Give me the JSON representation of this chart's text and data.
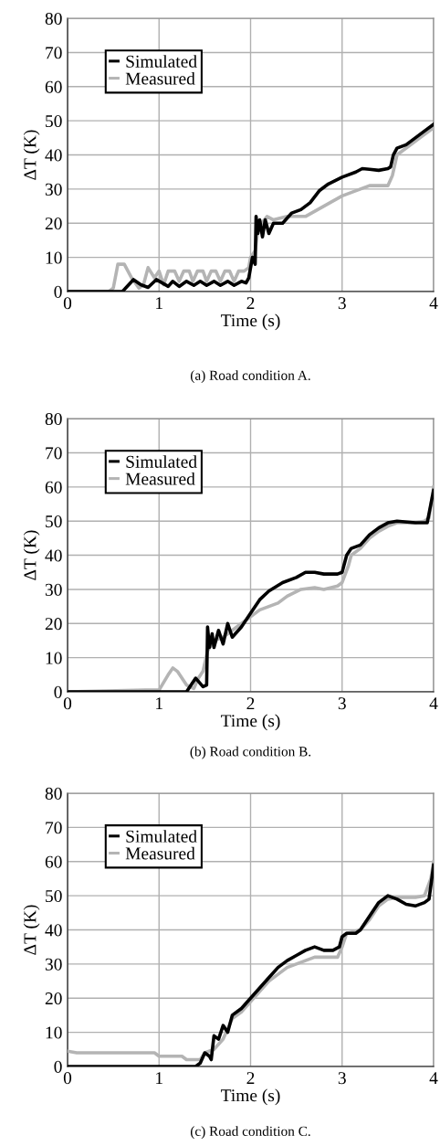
{
  "chart_data": [
    {
      "type": "line",
      "xlabel": "Time (s)",
      "ylabel": "ΔT (K)",
      "xlim": [
        0,
        4
      ],
      "ylim": [
        0,
        80
      ],
      "xticks": [
        0,
        1,
        2,
        3,
        4
      ],
      "yticks": [
        0,
        10,
        20,
        30,
        40,
        50,
        60,
        70,
        80
      ],
      "grid": true,
      "legend": "top left",
      "marker": "none",
      "line_style": "solid",
      "annotations": [
        "(a) Road condition A."
      ],
      "series": [
        {
          "name": "Simulated",
          "color": "#000000",
          "x": [
            0,
            0.6,
            0.72,
            0.8,
            0.88,
            0.97,
            1.1,
            1.15,
            1.22,
            1.3,
            1.38,
            1.45,
            1.52,
            1.6,
            1.67,
            1.75,
            1.82,
            1.9,
            1.95,
            1.98,
            2.02,
            2.05,
            2.06,
            2.08,
            2.1,
            2.13,
            2.16,
            2.2,
            2.25,
            2.35,
            2.45,
            2.55,
            2.65,
            2.75,
            2.85,
            3.0,
            3.15,
            3.22,
            3.3,
            3.4,
            3.5,
            3.53,
            3.56,
            3.6,
            3.7,
            3.8,
            3.9,
            4.0
          ],
          "values": [
            0,
            0,
            3.5,
            2,
            1.2,
            3.5,
            1.5,
            3,
            1.5,
            3,
            1.8,
            3,
            1.8,
            3,
            1.8,
            3,
            1.8,
            3,
            2.5,
            4,
            10,
            8,
            22,
            17,
            21,
            16,
            21,
            17,
            20,
            20,
            23,
            24,
            26,
            29.5,
            31.5,
            33.5,
            35,
            36,
            35.8,
            35.5,
            36,
            36.5,
            40,
            42,
            43,
            45,
            47,
            49
          ]
        },
        {
          "name": "Measured",
          "color": "#b4b4b4",
          "x": [
            0,
            0.45,
            0.5,
            0.55,
            0.62,
            0.7,
            0.78,
            0.83,
            0.88,
            0.95,
            1.0,
            1.05,
            1.1,
            1.17,
            1.22,
            1.27,
            1.33,
            1.37,
            1.42,
            1.48,
            1.52,
            1.57,
            1.62,
            1.67,
            1.72,
            1.77,
            1.82,
            1.87,
            1.93,
            1.98,
            2.0,
            2.05,
            2.08,
            2.12,
            2.18,
            2.25,
            2.4,
            2.6,
            2.8,
            3.0,
            3.2,
            3.3,
            3.5,
            3.55,
            3.6,
            3.7,
            3.8,
            3.9,
            4.0
          ],
          "values": [
            0,
            0,
            1,
            8,
            8,
            4,
            1,
            2,
            7,
            4,
            6,
            2,
            6,
            6,
            3,
            6,
            6,
            3,
            6,
            6,
            3,
            6,
            6,
            3,
            6,
            6,
            3,
            6,
            6,
            7,
            10,
            12,
            18,
            20,
            22,
            21,
            22,
            22,
            25,
            28,
            30,
            31,
            31,
            34,
            40,
            42,
            44,
            46,
            48
          ]
        }
      ]
    },
    {
      "type": "line",
      "xlabel": "Time (s)",
      "ylabel": "ΔT (K)",
      "xlim": [
        0,
        4
      ],
      "ylim": [
        0,
        80
      ],
      "xticks": [
        0,
        1,
        2,
        3,
        4
      ],
      "yticks": [
        0,
        10,
        20,
        30,
        40,
        50,
        60,
        70,
        80
      ],
      "grid": true,
      "legend": "top left",
      "marker": "none",
      "line_style": "solid",
      "annotations": [
        "(b) Road condition B."
      ],
      "series": [
        {
          "name": "Simulated",
          "color": "#000000",
          "x": [
            0,
            0.8,
            1.3,
            1.4,
            1.48,
            1.52,
            1.53,
            1.55,
            1.58,
            1.6,
            1.65,
            1.7,
            1.75,
            1.8,
            1.9,
            2.0,
            2.1,
            2.2,
            2.35,
            2.5,
            2.6,
            2.7,
            2.8,
            2.95,
            3.0,
            3.05,
            3.1,
            3.2,
            3.3,
            3.4,
            3.5,
            3.6,
            3.8,
            3.93,
            3.97,
            4.0
          ],
          "values": [
            0,
            0,
            0,
            4,
            1.5,
            2,
            19,
            13,
            17,
            13,
            18,
            14,
            20,
            16,
            19,
            23,
            27,
            29.5,
            32,
            33.5,
            35,
            35,
            34.5,
            34.5,
            35,
            40,
            42,
            43,
            46,
            48,
            49.5,
            50,
            49.5,
            49.5,
            55,
            59
          ]
        },
        {
          "name": "Measured",
          "color": "#b4b4b4",
          "x": [
            0,
            0.85,
            1.0,
            1.1,
            1.15,
            1.2,
            1.3,
            1.38,
            1.43,
            1.48,
            1.53,
            1.6,
            1.7,
            1.8,
            1.9,
            2.0,
            2.1,
            2.2,
            2.3,
            2.4,
            2.55,
            2.7,
            2.8,
            2.95,
            3.0,
            3.07,
            3.1,
            3.2,
            3.3,
            3.4,
            3.5,
            3.6,
            3.8,
            3.9,
            3.95,
            4.0
          ],
          "values": [
            0,
            0.5,
            0.5,
            5,
            7,
            6,
            2,
            1,
            4,
            6,
            12,
            15,
            16,
            18,
            20,
            22,
            24,
            25,
            26,
            28,
            30,
            30.5,
            30,
            31,
            32,
            37,
            40,
            42,
            45,
            47,
            48.5,
            49.5,
            49.5,
            50,
            51,
            60
          ]
        }
      ]
    },
    {
      "type": "line",
      "xlabel": "Time (s)",
      "ylabel": "ΔT (K)",
      "xlim": [
        0,
        4
      ],
      "ylim": [
        0,
        80
      ],
      "xticks": [
        0,
        1,
        2,
        3,
        4
      ],
      "yticks": [
        0,
        10,
        20,
        30,
        40,
        50,
        60,
        70,
        80
      ],
      "grid": true,
      "legend": "top left",
      "marker": "none",
      "line_style": "solid",
      "annotations": [
        "(c) Road condition C."
      ],
      "series": [
        {
          "name": "Simulated",
          "color": "#000000",
          "x": [
            0,
            1.4,
            1.45,
            1.5,
            1.55,
            1.57,
            1.6,
            1.65,
            1.7,
            1.75,
            1.8,
            1.9,
            2.0,
            2.1,
            2.2,
            2.3,
            2.4,
            2.5,
            2.6,
            2.7,
            2.8,
            2.9,
            2.97,
            3.0,
            3.05,
            3.15,
            3.2,
            3.3,
            3.4,
            3.5,
            3.6,
            3.7,
            3.8,
            3.9,
            3.95,
            4.0
          ],
          "values": [
            0,
            0,
            1,
            4,
            3,
            2,
            9,
            8,
            12,
            10,
            15,
            17,
            20,
            23,
            26,
            29,
            31,
            32.5,
            34,
            35,
            34,
            34,
            35,
            38,
            39,
            39,
            40,
            44,
            48,
            50,
            49,
            47.5,
            47,
            48,
            49,
            59
          ]
        },
        {
          "name": "Measured",
          "color": "#b4b4b4",
          "x": [
            0,
            0.1,
            0.95,
            1.0,
            1.25,
            1.3,
            1.45,
            1.5,
            1.6,
            1.7,
            1.8,
            1.9,
            2.0,
            2.1,
            2.2,
            2.3,
            2.4,
            2.5,
            2.6,
            2.7,
            2.95,
            3.0,
            3.05,
            3.2,
            3.3,
            3.4,
            3.5,
            3.6,
            3.8,
            3.9,
            3.97,
            4.0
          ],
          "values": [
            4.5,
            4,
            4,
            3,
            3,
            2,
            2,
            4,
            5,
            8,
            14,
            16,
            19,
            22,
            25,
            27,
            29,
            30,
            31,
            32,
            32,
            35,
            39,
            40,
            43,
            47,
            49,
            49.5,
            49.5,
            50,
            55,
            60
          ]
        }
      ]
    }
  ]
}
